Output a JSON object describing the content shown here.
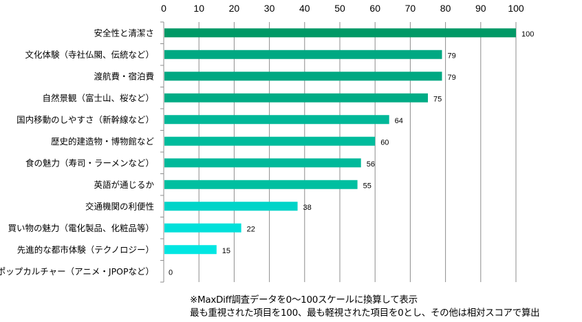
{
  "chart_data": {
    "type": "bar",
    "orientation": "horizontal",
    "categories": [
      "安全性と清潔さ",
      "文化体験（寺社仏閣、伝統など）",
      "渡航費・宿泊費",
      "自然景観（富士山、桜など）",
      "国内移動のしやすさ（新幹線など）",
      "歴史的建造物・博物館など",
      "食の魅力（寿司・ラーメンなど）",
      "英語が通じるか",
      "交通機関の利便性",
      "買い物の魅力（電化製品、化粧品等）",
      "先進的な都市体験（テクノロジー）",
      "ポップカルチャー（アニメ・JPOPなど）"
    ],
    "values": [
      100,
      79,
      79,
      75,
      64,
      60,
      56,
      55,
      38,
      22,
      15,
      0
    ],
    "colors": [
      "#009966",
      "#00A882",
      "#00A882",
      "#00AC85",
      "#00B898",
      "#00BC9C",
      "#00B99A",
      "#00BFA0",
      "#00D4C8",
      "#00E0DA",
      "#00E6E2",
      "#00E6E2"
    ],
    "xlim": [
      0,
      100
    ],
    "xticks": [
      0,
      10,
      20,
      30,
      40,
      50,
      60,
      70,
      80,
      90,
      100
    ],
    "axis_position": "top",
    "grid": true,
    "title": "",
    "xlabel": "",
    "ylabel": ""
  },
  "notes": [
    "※MaxDiff調査データを0～100スケールに換算して表示",
    "最も重視された項目を100、最も軽視された項目を0とし、その他は相対スコアで算出"
  ]
}
